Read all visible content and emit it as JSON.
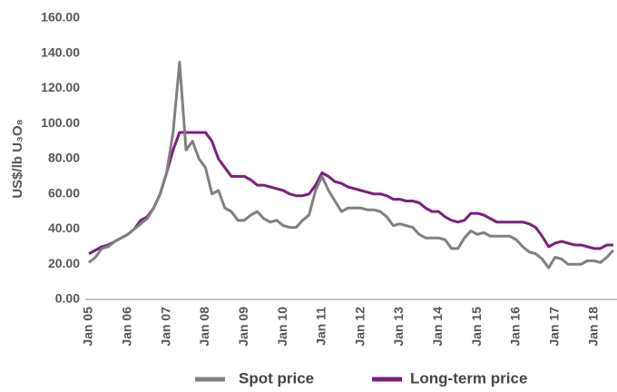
{
  "chart_data": {
    "type": "line",
    "y_label": "US$/lb U₃O₈",
    "categories": [
      "Jan 05",
      null,
      null,
      null,
      null,
      null,
      "Jan 06",
      null,
      null,
      null,
      null,
      null,
      "Jan 07",
      null,
      null,
      null,
      null,
      null,
      "Jan 08",
      null,
      null,
      null,
      null,
      null,
      "Jan 09",
      null,
      null,
      null,
      null,
      null,
      "Jan 10",
      null,
      null,
      null,
      null,
      null,
      "Jan 11",
      null,
      null,
      null,
      null,
      null,
      "Jan 12",
      null,
      null,
      null,
      null,
      null,
      "Jan 13",
      null,
      null,
      null,
      null,
      null,
      "Jan 14",
      null,
      null,
      null,
      null,
      null,
      "Jan 15",
      null,
      null,
      null,
      null,
      null,
      "Jan 16",
      null,
      null,
      null,
      null,
      null,
      "Jan 17",
      null,
      null,
      null,
      null,
      null,
      "Jan 18",
      null,
      null,
      null
    ],
    "series": [
      {
        "name": "Spot price",
        "color": "#808080",
        "values": [
          21,
          24,
          29,
          30,
          33,
          35,
          37,
          40,
          43,
          46,
          52,
          60,
          72,
          95,
          135,
          85,
          90,
          80,
          75,
          60,
          62,
          52,
          50,
          45,
          45,
          48,
          50,
          46,
          44,
          45,
          42,
          41,
          41,
          45,
          48,
          62,
          70,
          62,
          56,
          50,
          52,
          52,
          52,
          51,
          51,
          50,
          47,
          42,
          43,
          42,
          41,
          37,
          35,
          35,
          35,
          34,
          29,
          29,
          35,
          39,
          37,
          38,
          36,
          36,
          36,
          36,
          34,
          30,
          27,
          26,
          23,
          18,
          24,
          23,
          20,
          20,
          20,
          22,
          22,
          21,
          24,
          28
        ]
      },
      {
        "name": "Long-term price",
        "color": "#7b1f7f",
        "values": [
          26,
          28,
          30,
          31,
          33,
          35,
          37,
          40,
          45,
          47,
          52,
          60,
          72,
          85,
          95,
          95,
          95,
          95,
          95,
          90,
          80,
          75,
          70,
          70,
          70,
          68,
          65,
          65,
          64,
          63,
          62,
          60,
          59,
          59,
          60,
          65,
          72,
          70,
          67,
          66,
          64,
          63,
          62,
          61,
          60,
          60,
          59,
          57,
          57,
          56,
          56,
          55,
          52,
          50,
          50,
          47,
          45,
          44,
          45,
          49,
          49,
          48,
          46,
          44,
          44,
          44,
          44,
          44,
          43,
          41,
          36,
          30,
          32,
          33,
          32,
          31,
          31,
          30,
          29,
          29,
          31,
          31
        ]
      }
    ],
    "ylim": [
      0,
      160
    ],
    "yticks": [
      {
        "value": 0,
        "label": "0.00"
      },
      {
        "value": 20,
        "label": "20.00"
      },
      {
        "value": 40,
        "label": "40.00"
      },
      {
        "value": 60,
        "label": "60.00"
      },
      {
        "value": 80,
        "label": "80.00"
      },
      {
        "value": 100,
        "label": "100.00"
      },
      {
        "value": 120,
        "label": "120.00"
      },
      {
        "value": 140,
        "label": "140.00"
      },
      {
        "value": 160,
        "label": "160.00"
      }
    ],
    "grid": false
  }
}
